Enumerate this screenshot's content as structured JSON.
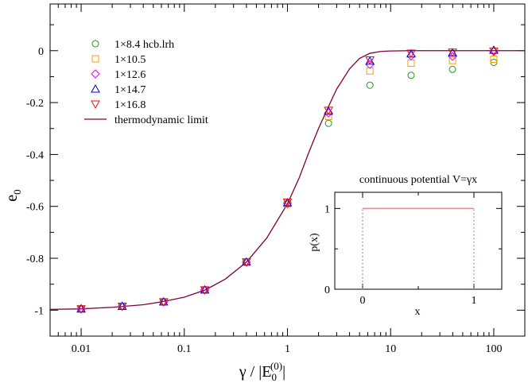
{
  "chart_data": [
    {
      "type": "line",
      "xscale": "log",
      "xlim": [
        0.005,
        200
      ],
      "ylim": [
        -1.1,
        0.18
      ],
      "xticks": [
        0.01,
        0.1,
        1,
        10,
        100
      ],
      "xtick_labels": [
        "0.01",
        "0.1",
        "1",
        "10",
        "100"
      ],
      "yticks": [
        -1,
        -0.8,
        -0.6,
        -0.4,
        -0.2,
        0
      ],
      "ytick_labels": [
        "-1",
        "-0.8",
        "-0.6",
        "-0.4",
        "-0.2",
        "0"
      ],
      "xlabel": "γ / |E",
      "xlabel_sub": "0",
      "xlabel_sup": "(0)",
      "xlabel_end": "|",
      "ylabel": "e",
      "ylabel_sub": "0",
      "x": [
        0.01,
        0.025,
        0.063,
        0.158,
        0.4,
        1.0,
        2.5,
        6.3,
        15.8,
        39.8,
        100
      ],
      "series": [
        {
          "name": "1×8.4  hcb.lrh",
          "marker": "circle",
          "color": "#1f9a1f",
          "values": [
            -0.995,
            -0.985,
            -0.968,
            -0.922,
            -0.815,
            -0.592,
            -0.28,
            -0.133,
            -0.095,
            -0.072,
            -0.045
          ]
        },
        {
          "name": "1×10.5",
          "marker": "square",
          "color": "#f0a000",
          "values": [
            -0.995,
            -0.985,
            -0.968,
            -0.922,
            -0.815,
            -0.59,
            -0.253,
            -0.078,
            -0.048,
            -0.038,
            -0.033
          ]
        },
        {
          "name": "1×12.6",
          "marker": "diamond",
          "color": "#ee00ee",
          "values": [
            -0.995,
            -0.985,
            -0.968,
            -0.922,
            -0.815,
            -0.588,
            -0.24,
            -0.053,
            -0.02,
            -0.022,
            -0.003
          ]
        },
        {
          "name": "1×14.7",
          "marker": "triangle-up",
          "color": "#0000cc",
          "values": [
            -0.995,
            -0.985,
            -0.968,
            -0.922,
            -0.814,
            -0.586,
            -0.233,
            -0.04,
            -0.012,
            -0.008,
            0.002
          ]
        },
        {
          "name": "1×16.8",
          "marker": "triangle-down",
          "color": "#dd1111",
          "values": [
            -0.995,
            -0.985,
            -0.968,
            -0.922,
            -0.814,
            -0.584,
            -0.23,
            -0.036,
            -0.01,
            -0.006,
            -0.002
          ]
        }
      ],
      "line": {
        "name": "thermodynamic limit",
        "color": "#800040",
        "x": [
          0.005,
          0.01,
          0.02,
          0.04,
          0.06,
          0.1,
          0.16,
          0.25,
          0.4,
          0.63,
          1.0,
          1.3,
          1.6,
          2.0,
          2.5,
          3.0,
          4.0,
          5.0,
          6.3,
          8.0,
          10,
          15,
          20,
          50,
          100,
          200
        ],
        "y": [
          -0.997,
          -0.995,
          -0.989,
          -0.979,
          -0.968,
          -0.95,
          -0.922,
          -0.88,
          -0.815,
          -0.722,
          -0.59,
          -0.49,
          -0.395,
          -0.3,
          -0.215,
          -0.148,
          -0.07,
          -0.03,
          -0.01,
          -0.003,
          -0.001,
          0.0,
          0.0,
          0.0,
          0.0,
          0.0
        ]
      },
      "legend_position": "top-left"
    },
    {
      "type": "line",
      "title": "continuous potential V=γx",
      "xlabel": "x",
      "ylabel": "p(x)",
      "xlim": [
        -0.25,
        1.25
      ],
      "ylim": [
        0,
        1.2
      ],
      "xticks": [
        0,
        1
      ],
      "xtick_labels": [
        "0",
        "1"
      ],
      "yticks": [
        0,
        1
      ],
      "ytick_labels": [
        "0",
        "1"
      ],
      "line": {
        "color": "#d89090",
        "x": [
          0,
          1
        ],
        "y": [
          1,
          1
        ]
      },
      "dotted_verticals": {
        "color": "#b088b0",
        "x": [
          0,
          1
        ],
        "y_top": 1
      }
    }
  ]
}
